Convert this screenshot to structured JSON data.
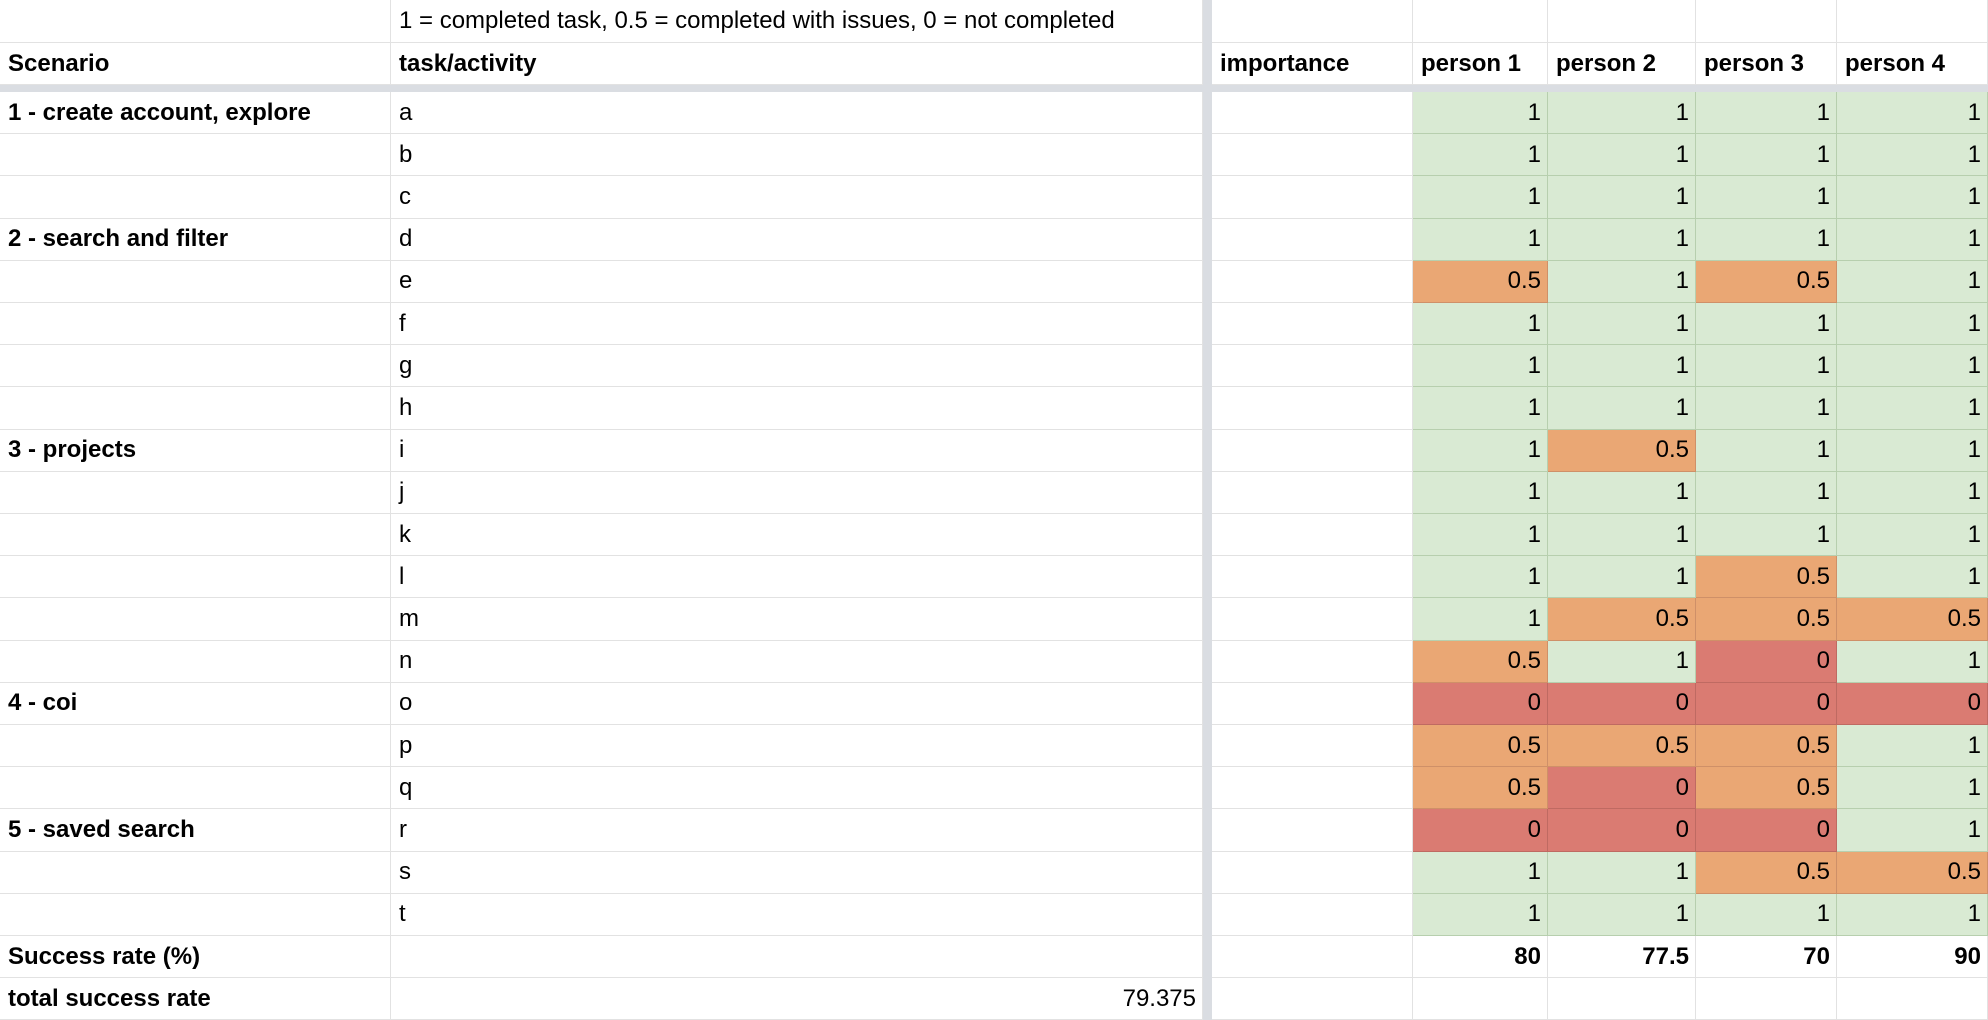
{
  "legend": "1 = completed task, 0.5 = completed with issues, 0 = not completed",
  "headers": {
    "scenario": "Scenario",
    "task": "task/activity",
    "importance": "importance",
    "persons": [
      "person 1",
      "person 2",
      "person 3",
      "person 4"
    ]
  },
  "rows": [
    {
      "scenario": "1 - create account, explore",
      "task": "a",
      "scores": [
        "1",
        "1",
        "1",
        "1"
      ]
    },
    {
      "scenario": "",
      "task": "b",
      "scores": [
        "1",
        "1",
        "1",
        "1"
      ]
    },
    {
      "scenario": "",
      "task": "c",
      "scores": [
        "1",
        "1",
        "1",
        "1"
      ]
    },
    {
      "scenario": "2 - search and filter",
      "task": "d",
      "scores": [
        "1",
        "1",
        "1",
        "1"
      ]
    },
    {
      "scenario": "",
      "task": "e",
      "scores": [
        "0.5",
        "1",
        "0.5",
        "1"
      ]
    },
    {
      "scenario": "",
      "task": "f",
      "scores": [
        "1",
        "1",
        "1",
        "1"
      ]
    },
    {
      "scenario": "",
      "task": "g",
      "scores": [
        "1",
        "1",
        "1",
        "1"
      ]
    },
    {
      "scenario": "",
      "task": "h",
      "scores": [
        "1",
        "1",
        "1",
        "1"
      ]
    },
    {
      "scenario": "3 - projects",
      "task": "i",
      "scores": [
        "1",
        "0.5",
        "1",
        "1"
      ]
    },
    {
      "scenario": "",
      "task": "j",
      "scores": [
        "1",
        "1",
        "1",
        "1"
      ]
    },
    {
      "scenario": "",
      "task": "k",
      "scores": [
        "1",
        "1",
        "1",
        "1"
      ]
    },
    {
      "scenario": "",
      "task": "l",
      "scores": [
        "1",
        "1",
        "0.5",
        "1"
      ]
    },
    {
      "scenario": "",
      "task": "m",
      "scores": [
        "1",
        "0.5",
        "0.5",
        "0.5"
      ]
    },
    {
      "scenario": "",
      "task": "n",
      "scores": [
        "0.5",
        "1",
        "0",
        "1"
      ]
    },
    {
      "scenario": "4 - coi",
      "task": "o",
      "scores": [
        "0",
        "0",
        "0",
        "0"
      ]
    },
    {
      "scenario": "",
      "task": "p",
      "scores": [
        "0.5",
        "0.5",
        "0.5",
        "1"
      ]
    },
    {
      "scenario": "",
      "task": "q",
      "scores": [
        "0.5",
        "0",
        "0.5",
        "1"
      ]
    },
    {
      "scenario": "5 - saved search",
      "task": "r",
      "scores": [
        "0",
        "0",
        "0",
        "1"
      ]
    },
    {
      "scenario": "",
      "task": "s",
      "scores": [
        "1",
        "1",
        "0.5",
        "0.5"
      ]
    },
    {
      "scenario": "",
      "task": "t",
      "scores": [
        "1",
        "1",
        "1",
        "1"
      ]
    }
  ],
  "success_rate": {
    "label": "Success rate (%)",
    "values": [
      "80",
      "77.5",
      "70",
      "90"
    ]
  },
  "total_success": {
    "label": "total success rate",
    "value": "79.375"
  },
  "colors": {
    "completed": "#d9ead3",
    "issues": "#eaa774",
    "not_completed": "#da7b72"
  }
}
